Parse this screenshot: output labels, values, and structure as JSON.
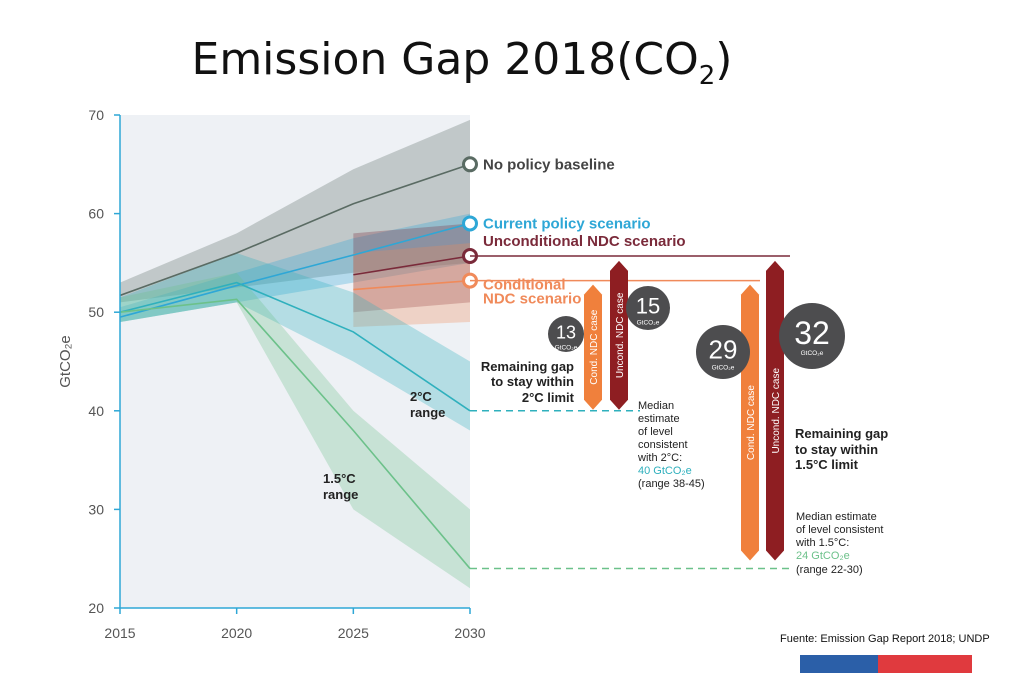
{
  "title": {
    "main": "Emission Gap 2018(CO",
    "sub": "2",
    "close": ")"
  },
  "source": "Fuente: Emission Gap Report 2018; UNDP",
  "colors": {
    "baseline": "#5a6b63",
    "current": "#2ea7d6",
    "uncond": "#7a2a3a",
    "cond": "#f08a5a",
    "two_deg": "#2fb0bd",
    "onefive": "#6cc18a",
    "bar_cond": "#f0803c",
    "bar_uncond": "#8e1e22",
    "circle": "#4d4d4f"
  },
  "chart_data": {
    "type": "line",
    "ylabel": "GtCO₂e",
    "xlabel": "",
    "x": [
      2015,
      2020,
      2025,
      2030
    ],
    "x_ticks": [
      "2015",
      "2020",
      "2025",
      "2030"
    ],
    "y_ticks": [
      "20",
      "30",
      "40",
      "50",
      "60",
      "70"
    ],
    "ylim": [
      20,
      70
    ],
    "xlim": [
      2015,
      2030
    ],
    "series": [
      {
        "name": "No policy baseline",
        "key": "baseline",
        "values": [
          51.7,
          56,
          61,
          65
        ],
        "band_low": [
          51,
          52.5,
          54,
          55
        ],
        "band_high": [
          53,
          58,
          64.5,
          69.5
        ]
      },
      {
        "name": "Current policy scenario",
        "key": "current",
        "values": [
          49.5,
          52.7,
          55.8,
          59
        ],
        "band_low": [
          49,
          51,
          53,
          55
        ],
        "band_high": [
          50.5,
          54,
          57.5,
          60
        ]
      },
      {
        "name": "Unconditional NDC scenario",
        "key": "uncond",
        "values": [
          null,
          null,
          53.8,
          55.7
        ],
        "band_low": [
          null,
          null,
          50,
          51
        ],
        "band_high": [
          null,
          null,
          58,
          59
        ]
      },
      {
        "name": "Conditional NDC scenario",
        "key": "cond",
        "values": [
          null,
          null,
          52.3,
          53.2
        ],
        "band_low": [
          null,
          null,
          48.5,
          49
        ],
        "band_high": [
          null,
          null,
          56,
          57
        ]
      },
      {
        "name": "2°C range",
        "key": "two_deg",
        "values": [
          50,
          53,
          48,
          40
        ],
        "band_low": [
          49,
          51,
          45,
          38
        ],
        "band_high": [
          51.5,
          56,
          52,
          45
        ]
      },
      {
        "name": "1.5°C range",
        "key": "onefive",
        "values": [
          50,
          51.3,
          38,
          24
        ],
        "band_low": [
          49,
          51,
          30,
          22
        ],
        "band_high": [
          51.5,
          54,
          40,
          30
        ]
      }
    ],
    "labels": {
      "no_policy": "No policy baseline",
      "current_policy": "Current policy scenario",
      "uncond_ndc": "Unconditional NDC scenario",
      "cond_ndc_1": "Conditional",
      "cond_ndc_2": "NDC scenario",
      "two_deg_1": "2°C",
      "two_deg_2": "range",
      "onefive_1": "1.5°C",
      "onefive_2": "range"
    },
    "gaps_2c": {
      "cond_bar_label": "Cond. NDC case",
      "uncond_bar_label": "Uncond. NDC case",
      "cond_gap": "13",
      "uncond_gap": "15",
      "unit": "GtCO₂e",
      "remaining_1": "Remaining gap",
      "remaining_2": "to stay within",
      "remaining_3": "2°C limit",
      "median_1": "Median",
      "median_2": "estimate",
      "median_3": "of level",
      "median_4": "consistent",
      "median_5": "with 2°C:",
      "median_value": "40 GtCO₂e",
      "median_range": "(range 38-45)"
    },
    "gaps_15c": {
      "cond_bar_label": "Cond. NDC case",
      "uncond_bar_label": "Uncond. NDC case",
      "cond_gap": "29",
      "uncond_gap": "32",
      "unit": "GtCO₂e",
      "remaining_1": "Remaining gap",
      "remaining_2": "to stay within",
      "remaining_3": "1.5°C limit",
      "median_1": "Median estimate",
      "median_2": "of level consistent",
      "median_3": "with 1.5°C:",
      "median_value": "24 GtCO₂e",
      "median_range": "(range 22-30)"
    }
  }
}
